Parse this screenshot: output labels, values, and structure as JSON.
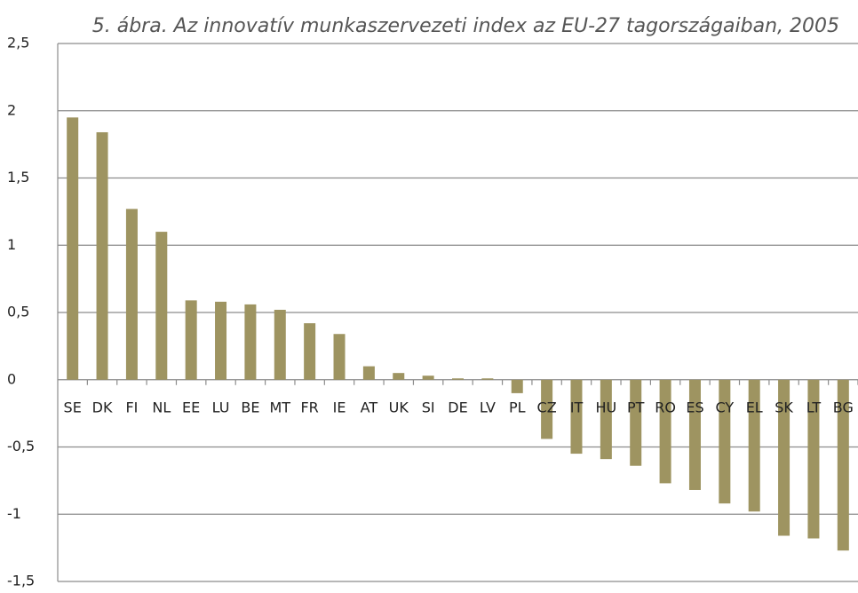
{
  "chart_data": {
    "type": "bar",
    "title": "5. ábra. Az innovatív munkaszervezeti index az EU-27 tagországaiban, 2005",
    "categories": [
      "SE",
      "DK",
      "FI",
      "NL",
      "EE",
      "LU",
      "BE",
      "MT",
      "FR",
      "IE",
      "AT",
      "UK",
      "SI",
      "DE",
      "LV",
      "PL",
      "CZ",
      "IT",
      "HU",
      "PT",
      "RO",
      "ES",
      "CY",
      "EL",
      "SK",
      "LT",
      "BG"
    ],
    "values": [
      1.95,
      1.84,
      1.27,
      1.1,
      0.59,
      0.58,
      0.56,
      0.52,
      0.42,
      0.34,
      0.1,
      0.05,
      0.03,
      0.01,
      0.01,
      -0.1,
      -0.44,
      -0.55,
      -0.59,
      -0.64,
      -0.77,
      -0.82,
      -0.92,
      -0.98,
      -1.16,
      -1.18,
      -1.27
    ],
    "color": "#9e9461",
    "ylim": [
      -1.5,
      2.5
    ],
    "yticks": [
      {
        "value": -1.5,
        "label": "-1,5"
      },
      -1,
      {
        "value": -0.5,
        "label": "-0,5"
      },
      0,
      {
        "value": 0.5,
        "label": "0,5"
      },
      1,
      {
        "value": 1.5,
        "label": "1,5"
      },
      2,
      {
        "value": 2.5,
        "label": "2,5"
      }
    ],
    "grid": true
  }
}
